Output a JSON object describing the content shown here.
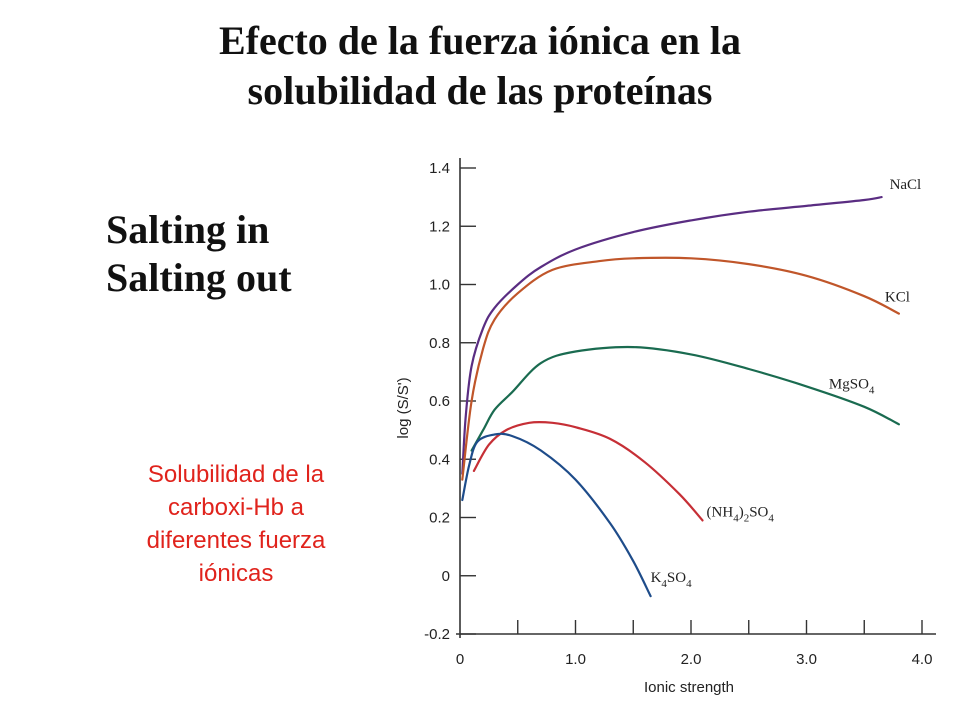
{
  "slide": {
    "title_lines": [
      "Efecto de la fuerza iónica en la",
      "solubilidad de las proteínas"
    ],
    "salting_lines": [
      "Salting in",
      "Salting out"
    ],
    "caption_lines": [
      "Solubilidad de la",
      "carboxi-Hb a",
      "diferentes fuerza",
      "iónicas"
    ],
    "caption_color": "#e0231c"
  },
  "chart_data": {
    "type": "line",
    "title": "",
    "xlabel": "Ionic strength",
    "ylabel": "log (S/S')",
    "xlim": [
      0,
      4.0
    ],
    "ylim": [
      -0.2,
      1.4
    ],
    "x_ticks": [
      "0",
      "1.0",
      "2.0",
      "3.0",
      "4.0"
    ],
    "y_ticks": [
      "-0.2",
      "0",
      "0.2",
      "0.4",
      "0.6",
      "0.8",
      "1.0",
      "1.2",
      "1.4"
    ],
    "grid": false,
    "series": [
      {
        "name": "NaCl",
        "color": "#5a2d82",
        "label": {
          "base": "NaCl",
          "sub": ""
        },
        "points": [
          [
            0.02,
            0.35
          ],
          [
            0.05,
            0.55
          ],
          [
            0.1,
            0.72
          ],
          [
            0.2,
            0.85
          ],
          [
            0.3,
            0.92
          ],
          [
            0.5,
            1.0
          ],
          [
            0.7,
            1.06
          ],
          [
            1.0,
            1.12
          ],
          [
            1.5,
            1.18
          ],
          [
            2.0,
            1.22
          ],
          [
            2.5,
            1.25
          ],
          [
            3.0,
            1.27
          ],
          [
            3.5,
            1.29
          ],
          [
            3.65,
            1.3
          ]
        ]
      },
      {
        "name": "KCl",
        "color": "#c0562a",
        "label": {
          "base": "KCl",
          "sub": ""
        },
        "points": [
          [
            0.02,
            0.33
          ],
          [
            0.1,
            0.6
          ],
          [
            0.2,
            0.78
          ],
          [
            0.3,
            0.88
          ],
          [
            0.5,
            0.97
          ],
          [
            0.8,
            1.05
          ],
          [
            1.2,
            1.08
          ],
          [
            1.5,
            1.09
          ],
          [
            2.0,
            1.09
          ],
          [
            2.5,
            1.07
          ],
          [
            3.0,
            1.03
          ],
          [
            3.5,
            0.96
          ],
          [
            3.8,
            0.9
          ]
        ]
      },
      {
        "name": "MgSO4",
        "color": "#1a6b50",
        "label": {
          "base": "MgSO",
          "sub": "4"
        },
        "points": [
          [
            0.1,
            0.43
          ],
          [
            0.2,
            0.5
          ],
          [
            0.3,
            0.57
          ],
          [
            0.45,
            0.63
          ],
          [
            0.7,
            0.73
          ],
          [
            1.0,
            0.77
          ],
          [
            1.5,
            0.785
          ],
          [
            2.0,
            0.76
          ],
          [
            2.5,
            0.71
          ],
          [
            3.0,
            0.65
          ],
          [
            3.5,
            0.58
          ],
          [
            3.8,
            0.52
          ]
        ]
      },
      {
        "name": "(NH4)2SO4",
        "color": "#c62f36",
        "label": {
          "base": "(NH",
          "sub": "4",
          "base2": ")",
          "sub2": "2",
          "base3": "SO",
          "sub3": "4"
        },
        "points": [
          [
            0.12,
            0.36
          ],
          [
            0.25,
            0.45
          ],
          [
            0.4,
            0.5
          ],
          [
            0.6,
            0.525
          ],
          [
            0.8,
            0.525
          ],
          [
            1.0,
            0.51
          ],
          [
            1.3,
            0.47
          ],
          [
            1.6,
            0.39
          ],
          [
            1.9,
            0.28
          ],
          [
            2.1,
            0.19
          ]
        ]
      },
      {
        "name": "K4SO4",
        "color": "#1e4c8a",
        "label": {
          "base": "K",
          "sub": "4",
          "base2": "SO",
          "sub2": "4"
        },
        "points": [
          [
            0.02,
            0.26
          ],
          [
            0.08,
            0.38
          ],
          [
            0.15,
            0.46
          ],
          [
            0.3,
            0.485
          ],
          [
            0.45,
            0.48
          ],
          [
            0.7,
            0.43
          ],
          [
            1.0,
            0.33
          ],
          [
            1.3,
            0.18
          ],
          [
            1.5,
            0.05
          ],
          [
            1.65,
            -0.07
          ]
        ]
      }
    ]
  }
}
